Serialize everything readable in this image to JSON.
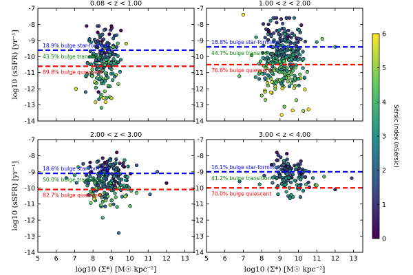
{
  "chart_data": {
    "type": "scatter",
    "xlabel": "log10 (Σ*) [M☉ kpc⁻²]",
    "ylabel": "log10 (sSFR) [yr⁻¹]",
    "xlim": [
      5,
      13.5
    ],
    "ylim": [
      -14,
      -7
    ],
    "xticks": [
      "5",
      "6",
      "7",
      "8",
      "9",
      "10",
      "11",
      "12",
      "13"
    ],
    "yticks": [
      "-7",
      "-8",
      "-9",
      "-10",
      "-11",
      "-12",
      "-13",
      "-14"
    ],
    "colorbar": {
      "label": "Sérsic Index (nSérsic)",
      "range": [
        0,
        6
      ],
      "ticks": [
        "0",
        "1",
        "2",
        "3",
        "4",
        "5",
        "6"
      ],
      "colormap": [
        "#440154",
        "#3b528b",
        "#21918c",
        "#5ec962",
        "#fde725"
      ]
    },
    "line_colors": {
      "star_forming": "#0000ff",
      "quiescent": "#ff0000",
      "transition_text": "#008000"
    },
    "panels": [
      {
        "title": "0.08 < z < 1.00",
        "sf_line": -9.6,
        "q_line": -10.6,
        "labels": {
          "sf": "18.9% bulge star-forming",
          "tr": "43.5% bulge transition",
          "q": "89.8% bulge quiescent"
        },
        "cloud": {
          "xmean": 8.6,
          "xsd": 0.45,
          "ymean": -10.3,
          "ysd": 1.1,
          "ymin": -14,
          "ymax": -8.1,
          "n": 190
        },
        "points": [
          [
            7.6,
            -12.2
          ],
          [
            8.3,
            -12.2
          ],
          [
            9.8,
            -9.2
          ],
          [
            8.5,
            -11.5
          ]
        ]
      },
      {
        "title": "1.00 < z < 2.00",
        "sf_line": -9.4,
        "q_line": -10.5,
        "labels": {
          "sf": "18.8% bulge star-forming",
          "tr": "44.7% bulge transition",
          "q": "76.6% bulge quiescent"
        },
        "cloud": {
          "xmean": 9.2,
          "xsd": 0.6,
          "ymean": -10.2,
          "ysd": 1.2,
          "ymin": -14,
          "ymax": -7.6,
          "n": 320
        },
        "points": [
          [
            7.0,
            -7.4
          ],
          [
            7.7,
            -8.8
          ],
          [
            11.3,
            -8.9
          ],
          [
            12.0,
            -9.4
          ],
          [
            11.0,
            -9.1
          ]
        ]
      },
      {
        "title": "2.00 < z < 3.00",
        "sf_line": -9.1,
        "q_line": -10.1,
        "labels": {
          "sf": "18.6% bulge star-forming",
          "tr": "50.0% bulge transition",
          "q": "82.7% bulge quiescent"
        },
        "cloud": {
          "xmean": 8.8,
          "xsd": 0.6,
          "ymean": -9.5,
          "ysd": 0.75,
          "ymin": -12.8,
          "ymax": -7.8,
          "n": 220
        },
        "points": [
          [
            9.4,
            -12.8
          ],
          [
            11.5,
            -9.0
          ],
          [
            12.0,
            -9.7
          ],
          [
            11.1,
            -10.4
          ],
          [
            7.2,
            -8.7
          ]
        ]
      },
      {
        "title": "3.00 < z < 4.00",
        "sf_line": -9.0,
        "q_line": -10.0,
        "labels": {
          "sf": "16.1% bulge star-forming",
          "tr": "41.2% bulge transition",
          "q": "70.0% bulge quiescent"
        },
        "cloud": {
          "xmean": 9.5,
          "xsd": 0.55,
          "ymean": -9.2,
          "ysd": 0.55,
          "ymin": -10.8,
          "ymax": -7.8,
          "n": 130
        },
        "points": [
          [
            12.9,
            -9.4
          ],
          [
            12.0,
            -10.1
          ],
          [
            6.8,
            -9.6
          ],
          [
            11.4,
            -9.3
          ]
        ]
      }
    ]
  }
}
